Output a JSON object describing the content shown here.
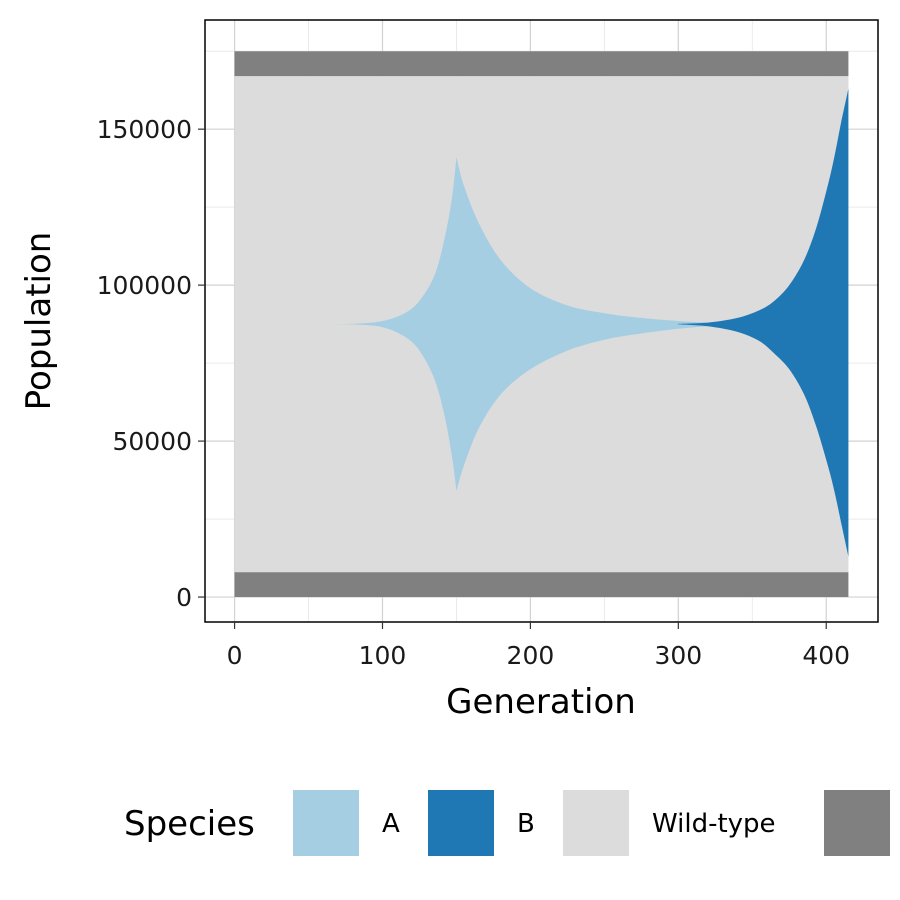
{
  "chart_data": {
    "type": "area",
    "xlabel": "Generation",
    "ylabel": "Population",
    "xlim": [
      -20,
      435
    ],
    "ylim": [
      -8000,
      185000
    ],
    "xticks": [
      0,
      100,
      200,
      300,
      400
    ],
    "yticks": [
      0,
      50000,
      100000,
      150000
    ],
    "xtick_labels": [
      "0",
      "100",
      "200",
      "300",
      "400"
    ],
    "ytick_labels": [
      "0",
      "50000",
      "100000",
      "150000"
    ],
    "grid": true,
    "legend": {
      "title": "Species",
      "position": "bottom",
      "entries": [
        {
          "label": "A",
          "color": "#a6cee3"
        },
        {
          "label": "B",
          "color": "#1f78b4"
        },
        {
          "label": "Wild-type",
          "color": "#dcdcdc"
        },
        {
          "label": "",
          "color": "#808080"
        }
      ]
    },
    "series": [
      {
        "name": "bottom-band",
        "color": "#808080",
        "x": [
          0,
          415
        ],
        "lower": [
          0,
          0
        ],
        "upper": [
          8000,
          8000
        ]
      },
      {
        "name": "Wild-type",
        "color": "#dcdcdc",
        "x": [
          0,
          415
        ],
        "lower": [
          8000,
          8000
        ],
        "upper": [
          167000,
          167000
        ]
      },
      {
        "name": "A",
        "color": "#a6cee3",
        "x": [
          50,
          80,
          100,
          115,
          125,
          135,
          142,
          147,
          150,
          155,
          165,
          180,
          200,
          225,
          250,
          275,
          300,
          320,
          335
        ],
        "upper": [
          87500,
          87600,
          88500,
          91000,
          95000,
          103000,
          115000,
          128000,
          141000,
          132000,
          120000,
          108000,
          99000,
          93500,
          91000,
          89500,
          88500,
          88000,
          87600
        ],
        "lower": [
          87500,
          87400,
          86500,
          83500,
          79000,
          70000,
          58000,
          45000,
          34000,
          42000,
          54000,
          65000,
          73000,
          79000,
          82500,
          84500,
          86000,
          86800,
          87300
        ]
      },
      {
        "name": "B",
        "color": "#1f78b4",
        "x": [
          300,
          320,
          340,
          355,
          365,
          375,
          385,
          393,
          400,
          405,
          410,
          415
        ],
        "upper": [
          87600,
          88000,
          89500,
          92000,
          95000,
          100000,
          108000,
          118000,
          130000,
          140000,
          152000,
          163000
        ],
        "lower": [
          87400,
          86800,
          85000,
          82000,
          78000,
          73000,
          65000,
          55000,
          44000,
          35000,
          24000,
          13000
        ]
      },
      {
        "name": "top-band",
        "color": "#808080",
        "x": [
          0,
          415
        ],
        "lower": [
          167000,
          167000
        ],
        "upper": [
          175000,
          175000
        ]
      }
    ]
  }
}
